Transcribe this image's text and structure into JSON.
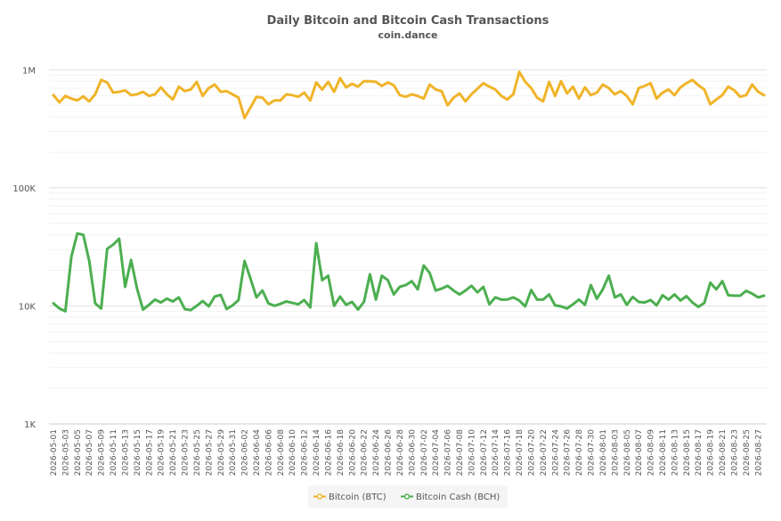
{
  "chart_data": {
    "type": "line",
    "title": "Daily Bitcoin and Bitcoin Cash Transactions",
    "subtitle": "coin.dance",
    "xlabel": "",
    "ylabel": "",
    "y_scale": "log",
    "ylim": [
      1000,
      1500000
    ],
    "y_ticks": [
      {
        "value": 1000,
        "label": "1K"
      },
      {
        "value": 10000,
        "label": "10K"
      },
      {
        "value": 100000,
        "label": "100K"
      },
      {
        "value": 1000000,
        "label": "1M"
      }
    ],
    "start_date": "2026-05-01",
    "end_date": "2026-08-28",
    "tick_every_days": 2,
    "grid": true,
    "legend_position": "bottom-center",
    "series": [
      {
        "name": "Bitcoin (BTC)",
        "color": "#f0b429",
        "values": [
          610000,
          530000,
          600000,
          570000,
          550000,
          595000,
          540000,
          620000,
          820000,
          780000,
          640000,
          650000,
          670000,
          610000,
          620000,
          650000,
          600000,
          620000,
          710000,
          620000,
          560000,
          720000,
          660000,
          680000,
          790000,
          600000,
          700000,
          750000,
          650000,
          660000,
          620000,
          580000,
          390000,
          480000,
          590000,
          580000,
          510000,
          550000,
          550000,
          620000,
          610000,
          590000,
          640000,
          550000,
          780000,
          680000,
          790000,
          650000,
          850000,
          710000,
          760000,
          720000,
          800000,
          800000,
          790000,
          730000,
          780000,
          740000,
          610000,
          590000,
          620000,
          600000,
          570000,
          750000,
          680000,
          660000,
          500000,
          580000,
          630000,
          540000,
          620000,
          690000,
          770000,
          720000,
          680000,
          600000,
          560000,
          620000,
          960000,
          790000,
          700000,
          580000,
          540000,
          790000,
          600000,
          800000,
          630000,
          720000,
          570000,
          710000,
          610000,
          640000,
          750000,
          700000,
          620000,
          660000,
          600000,
          510000,
          700000,
          730000,
          770000,
          570000,
          640000,
          680000,
          610000,
          710000,
          770000,
          820000,
          740000,
          680000,
          510000,
          560000,
          610000,
          720000,
          670000,
          590000,
          610000,
          750000,
          650000,
          610000
        ]
      },
      {
        "name": "Bitcoin Cash (BCH)",
        "color": "#4caf50",
        "values": [
          10500,
          9500,
          9000,
          26000,
          41000,
          40000,
          24000,
          10500,
          9500,
          30500,
          33000,
          37000,
          14500,
          24500,
          14000,
          9300,
          10200,
          11300,
          10700,
          11500,
          10900,
          11800,
          9400,
          9200,
          10000,
          11000,
          9900,
          12000,
          12400,
          9400,
          10100,
          11200,
          24000,
          17000,
          11800,
          13500,
          10500,
          10000,
          10400,
          10900,
          10600,
          10300,
          11200,
          9700,
          34000,
          16500,
          18000,
          10000,
          12000,
          10200,
          10800,
          9300,
          10800,
          18500,
          11300,
          18000,
          16500,
          12500,
          14500,
          15000,
          16200,
          13800,
          22000,
          19000,
          13500,
          14000,
          14800,
          13500,
          12500,
          13500,
          14800,
          13000,
          14500,
          10300,
          11800,
          11300,
          11300,
          11800,
          11100,
          9900,
          13600,
          11300,
          11300,
          12500,
          10100,
          9900,
          9500,
          10300,
          11300,
          10200,
          15000,
          11500,
          13800,
          18000,
          11800,
          12500,
          10200,
          11900,
          10800,
          10700,
          11200,
          10100,
          12300,
          11300,
          12500,
          11100,
          12100,
          10700,
          9800,
          10600,
          15700,
          13800,
          16200,
          12300,
          12200,
          12200,
          13400,
          12700,
          11800,
          12200
        ]
      }
    ]
  }
}
